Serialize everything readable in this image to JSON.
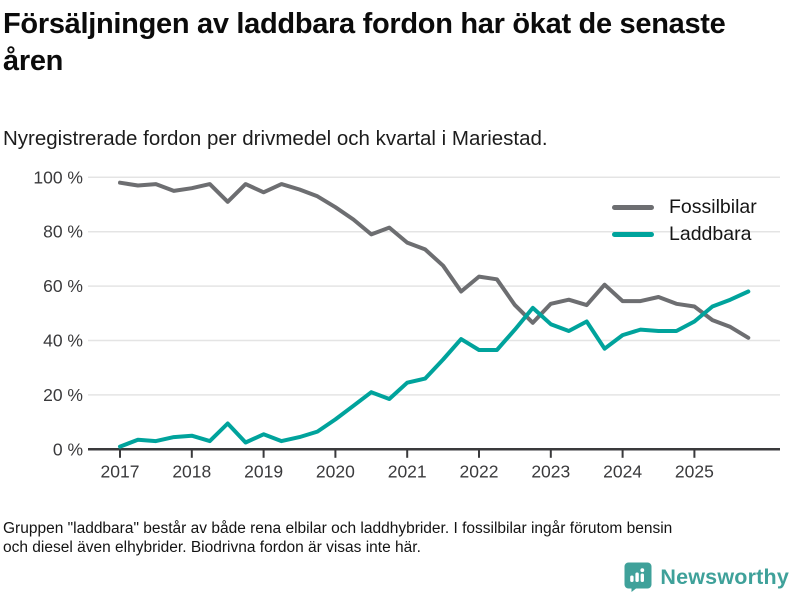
{
  "header": {
    "title": "Försäljningen av laddbara fordon har ökat de senaste åren",
    "subtitle": "Nyregistrerade fordon per drivmedel och kvartal i Mariestad."
  },
  "chart_data": {
    "type": "line",
    "title": "Försäljningen av laddbara fordon har ökat de senaste åren",
    "subtitle": "Nyregistrerade fordon per drivmedel och kvartal i Mariestad.",
    "x_unit": "quarter",
    "x_start": "2017-Q1",
    "x_end": "2025-Q4",
    "x_tick_labels": [
      "2017",
      "2018",
      "2019",
      "2020",
      "2021",
      "2022",
      "2023",
      "2024",
      "2025"
    ],
    "y_tick_labels": [
      "0 %",
      "20 %",
      "40 %",
      "60 %",
      "80 %",
      "100 %"
    ],
    "y_tick_values": [
      0,
      20,
      40,
      60,
      80,
      100
    ],
    "ylim": [
      0,
      100
    ],
    "grid": "horizontal",
    "legend_position": "top-right-inside",
    "series": [
      {
        "name": "Fossilbilar",
        "color": "#6d6e71",
        "values": [
          98,
          97,
          97.5,
          95,
          96,
          97.5,
          91,
          97.5,
          94.5,
          97.5,
          95.5,
          93,
          89,
          84.5,
          79,
          81.5,
          76,
          73.5,
          67.5,
          58,
          63.5,
          62.5,
          53,
          46.5,
          53.5,
          55,
          53,
          60.5,
          54.5,
          54.5,
          56,
          53.5,
          52.5,
          47.5,
          45,
          41
        ]
      },
      {
        "name": "Laddbara",
        "color": "#00a39c",
        "values": [
          1,
          3.5,
          3,
          4.5,
          5,
          3,
          9.5,
          2.5,
          5.5,
          3,
          4.5,
          6.5,
          11,
          16,
          21,
          18.5,
          24.5,
          26,
          33,
          40.5,
          36.5,
          36.5,
          44,
          52,
          46,
          43.5,
          47,
          37,
          42,
          44,
          43.5,
          43.5,
          47,
          52.5,
          55,
          58
        ]
      }
    ],
    "axis_color": "#3a3a3c",
    "gridline_color": "#e4e4e4",
    "tick_label_color": "#3a3a3c"
  },
  "footer": {
    "lines": [
      "Gruppen \"laddbara\" består av både rena elbilar och laddhybrider. I fossilbilar ingår förutom bensin",
      "och diesel även elhybrider. Biodrivna fordon är visas inte här."
    ]
  },
  "branding": {
    "logo_text": "Newsworthy",
    "logo_color": "#3fa19a",
    "logo_icon": "bar-chart-speech-bubble-icon"
  }
}
